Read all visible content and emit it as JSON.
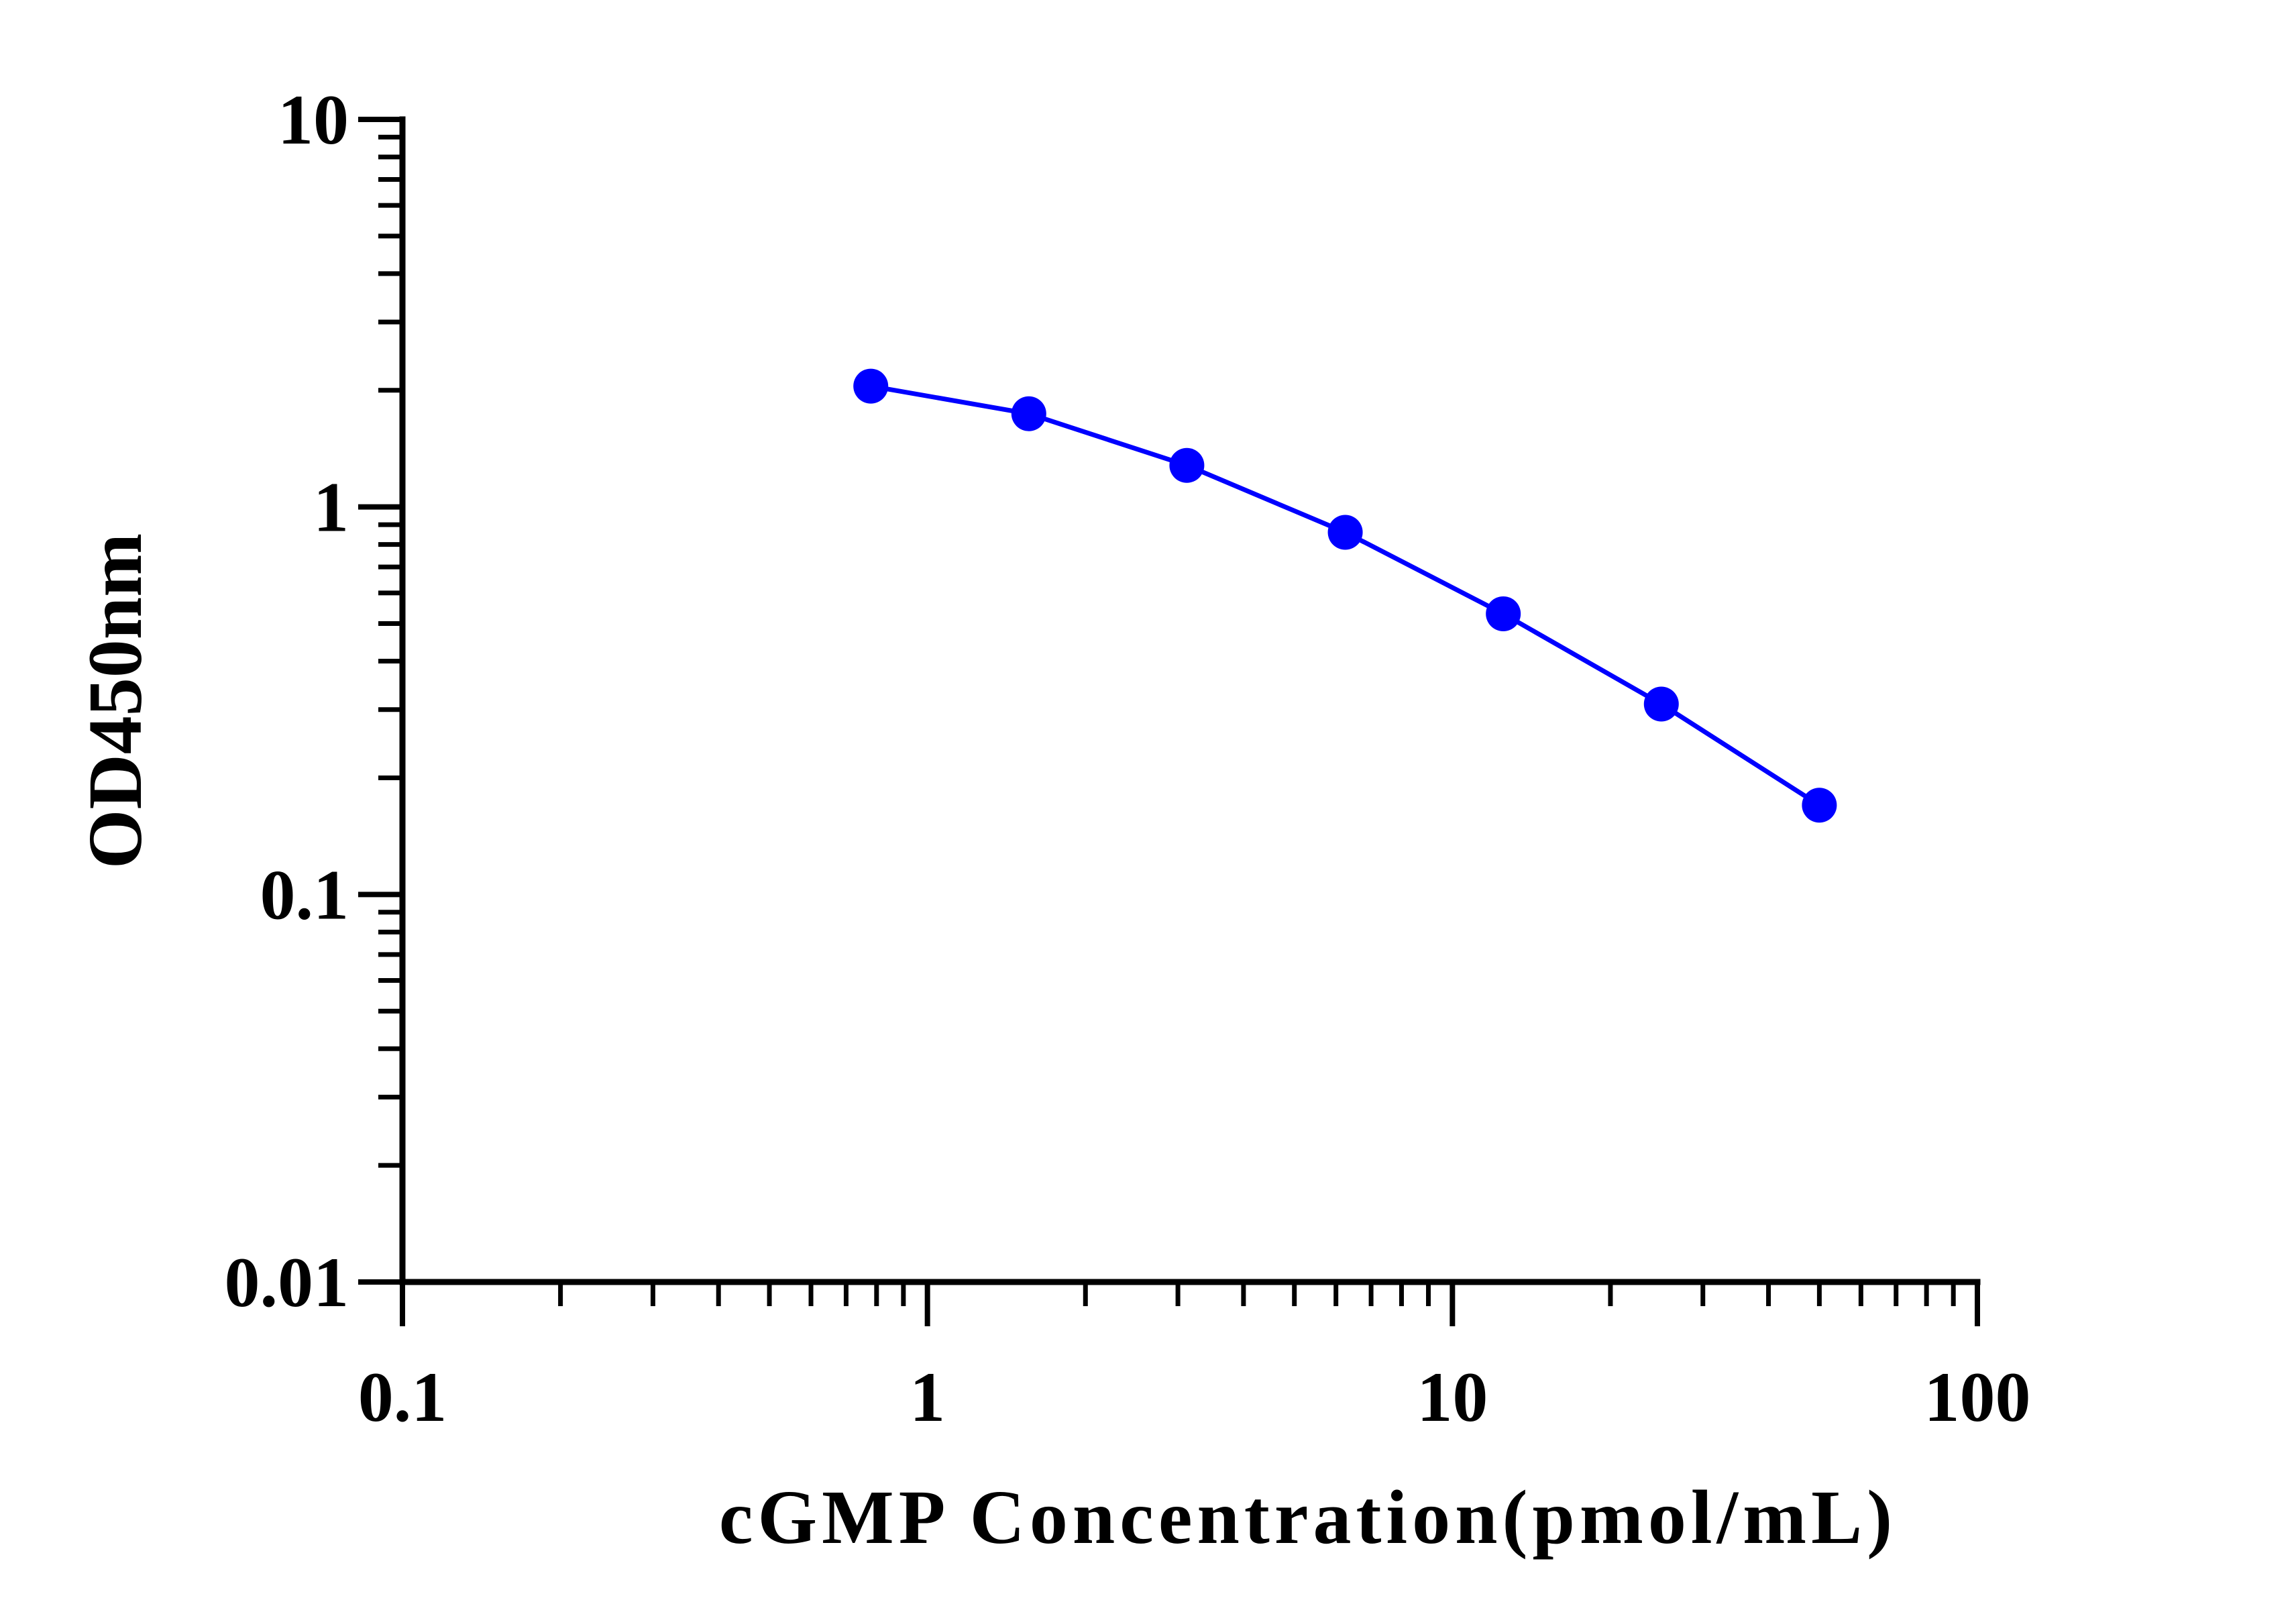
{
  "chart_data": {
    "type": "line",
    "title": "",
    "xlabel": "cGMP Concentration(pmol/mL)",
    "ylabel": "OD450nm",
    "xscale": "log",
    "yscale": "log",
    "xlim": [
      0.1,
      100
    ],
    "ylim": [
      0.01,
      10
    ],
    "x_ticks": [
      {
        "value": 0.1,
        "label": "0.1"
      },
      {
        "value": 1,
        "label": "1"
      },
      {
        "value": 10,
        "label": "10"
      },
      {
        "value": 100,
        "label": "100"
      }
    ],
    "y_ticks": [
      {
        "value": 0.01,
        "label": "0.01"
      },
      {
        "value": 0.1,
        "label": "0.1"
      },
      {
        "value": 1,
        "label": "1"
      },
      {
        "value": 10,
        "label": "10"
      }
    ],
    "grid": false,
    "legend": "none",
    "series": [
      {
        "color": "#0000ff",
        "x": [
          0.78,
          1.56,
          3.12,
          6.25,
          12.5,
          25,
          50
        ],
        "y": [
          2.05,
          1.74,
          1.28,
          0.86,
          0.53,
          0.31,
          0.17
        ]
      }
    ]
  }
}
